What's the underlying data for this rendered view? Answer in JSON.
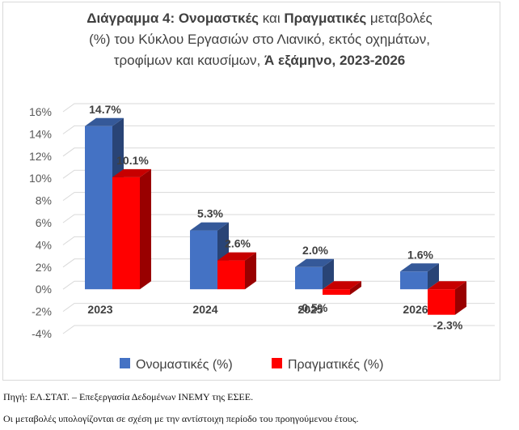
{
  "title": {
    "line1_bold": "Διάγραμμα 4: Ονομαστκές",
    "line1_mid": " και ",
    "line1_bold2": "Πραγματικές",
    "line1_end": " μεταβολές",
    "line2": "(%) του Κύκλου Εργασιών στο Λιανικό, εκτός οχημάτων,",
    "line3_normal": "τροφίμων και καυσίμων, ",
    "line3_bold": "Ά εξάμηνο, 2023-2026"
  },
  "chart_data": {
    "type": "bar",
    "categories": [
      "2023",
      "2024",
      "2025",
      "2026"
    ],
    "series": [
      {
        "name": "Ονομαστικές (%)",
        "color": "#4472c4",
        "values": [
          14.7,
          5.3,
          2.0,
          1.6
        ],
        "labels": [
          "14.7%",
          "5.3%",
          "2.0%",
          "1.6%"
        ]
      },
      {
        "name": "Πραγματικές (%)",
        "color": "#ff0000",
        "values": [
          10.1,
          2.6,
          -0.5,
          -2.3
        ],
        "labels": [
          "10.1%",
          "2.6%",
          "-0.5%",
          "-2.3%"
        ]
      }
    ],
    "ylim": [
      -4,
      16
    ],
    "yticks": [
      "-4%",
      "-2%",
      "0%",
      "2%",
      "4%",
      "6%",
      "8%",
      "10%",
      "12%",
      "14%",
      "16%"
    ],
    "grid": true,
    "legend_position": "bottom",
    "style": "3d-clustered-column"
  },
  "footer": {
    "source": "Πηγή: ΕΛ.ΣΤΑΤ. – Επεξεργασία Δεδομένων ΙΝΕΜΥ της ΕΣΕΕ.",
    "note": "Οι μεταβολές υπολογίζονται σε σχέση με την αντίστοιχη περίοδο του προηγούμενου έτους."
  }
}
